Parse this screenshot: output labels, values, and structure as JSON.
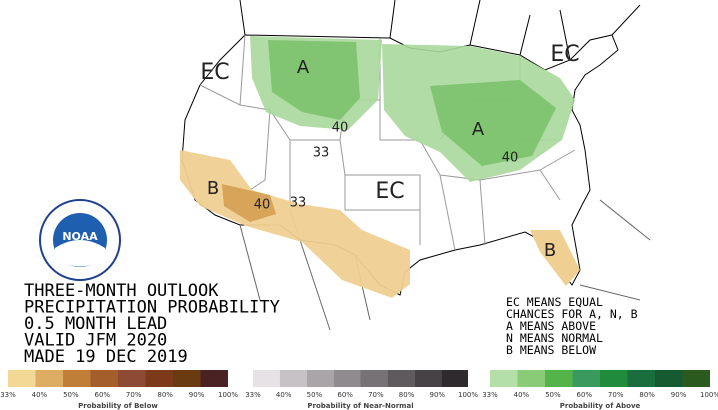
{
  "map": {
    "labels": [
      "EC",
      "EC",
      "EC",
      "A",
      "A",
      "B",
      "B",
      "40",
      "40",
      "40",
      "33",
      "33"
    ],
    "logo": "NOAA"
  },
  "title_lines": [
    "THREE-MONTH OUTLOOK",
    "PRECIPITATION PROBABILITY",
    "0.5 MONTH LEAD",
    "VALID JFM 2020",
    "MADE 19 DEC 2019"
  ],
  "legend_lines": [
    "EC MEANS EQUAL",
    "CHANCES FOR A, N, B",
    "A MEANS ABOVE",
    "N MEANS NORMAL",
    "B MEANS BELOW"
  ],
  "colorbars": [
    {
      "caption": "Probability of Below",
      "colors": [
        "#f3d794",
        "#dcad62",
        "#c07e38",
        "#a45e2c",
        "#8e4a32",
        "#7c3a1a",
        "#6a3a10",
        "#4a2224"
      ],
      "ticks": [
        "33%",
        "40%",
        "50%",
        "60%",
        "70%",
        "80%",
        "90%",
        "100%"
      ]
    },
    {
      "caption": "Probability of Near-Normal",
      "colors": [
        "#e6e2e6",
        "#c6c2c6",
        "#a9a5a9",
        "#8f8b8f",
        "#767276",
        "#5e5a5e",
        "#464246",
        "#2e2a2e"
      ],
      "ticks": [
        "33%",
        "40%",
        "50%",
        "60%",
        "70%",
        "80%",
        "90%",
        "100%"
      ]
    },
    {
      "caption": "Probability of Above",
      "colors": [
        "#b4dfa9",
        "#8acb78",
        "#55b449",
        "#3a9a5e",
        "#1f8b3b",
        "#1a6e3d",
        "#165a31",
        "#2b5a1f"
      ],
      "ticks": [
        "33%",
        "40%",
        "50%",
        "60%",
        "70%",
        "80%",
        "90%",
        "100%"
      ]
    }
  ]
}
